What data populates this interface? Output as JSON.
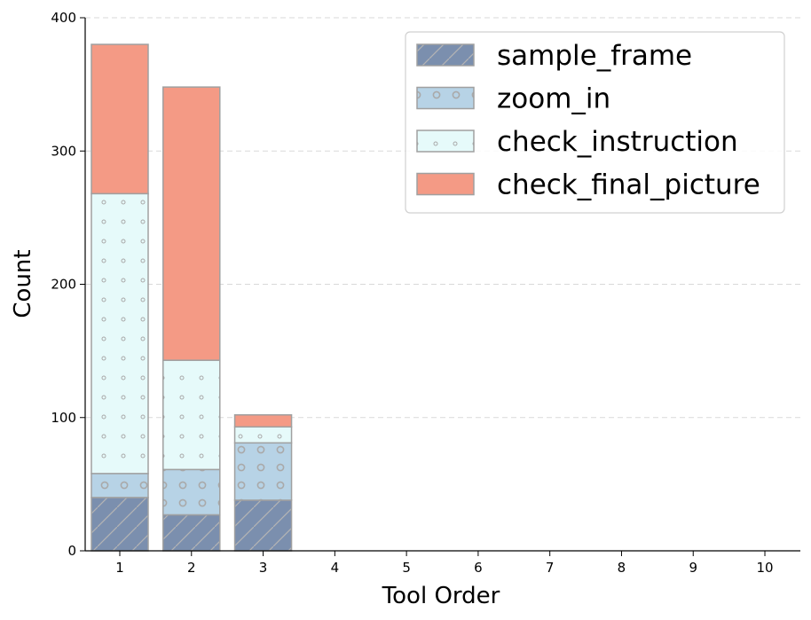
{
  "chart_data": {
    "type": "bar",
    "stacked": true,
    "title": "",
    "xlabel": "Tool Order",
    "ylabel": "Count",
    "categories": [
      "1",
      "2",
      "3",
      "4",
      "5",
      "6",
      "7",
      "8",
      "9",
      "10"
    ],
    "ylim": [
      0,
      400
    ],
    "yticks": [
      "0",
      "100",
      "200",
      "300",
      "400"
    ],
    "grid": "horizontal dashed",
    "legend_position": "top-right",
    "series": [
      {
        "name": "sample_frame",
        "values": [
          40,
          27,
          38,
          0,
          0,
          0,
          0,
          0,
          0,
          0
        ],
        "color": "#7b8fae",
        "pattern": "diagonal-lines"
      },
      {
        "name": "zoom_in",
        "values": [
          18,
          34,
          43,
          0,
          0,
          0,
          0,
          0,
          0,
          0
        ],
        "color": "#b7d3e6",
        "pattern": "circles"
      },
      {
        "name": "check_instruction",
        "values": [
          210,
          82,
          12,
          0,
          0,
          0,
          0,
          0,
          0,
          0
        ],
        "color": "#e6fafa",
        "pattern": "dots"
      },
      {
        "name": "check_final_picture",
        "values": [
          112,
          205,
          9,
          0,
          0,
          0,
          0,
          0,
          0,
          0
        ],
        "color": "#f49a85",
        "pattern": "solid"
      }
    ]
  }
}
